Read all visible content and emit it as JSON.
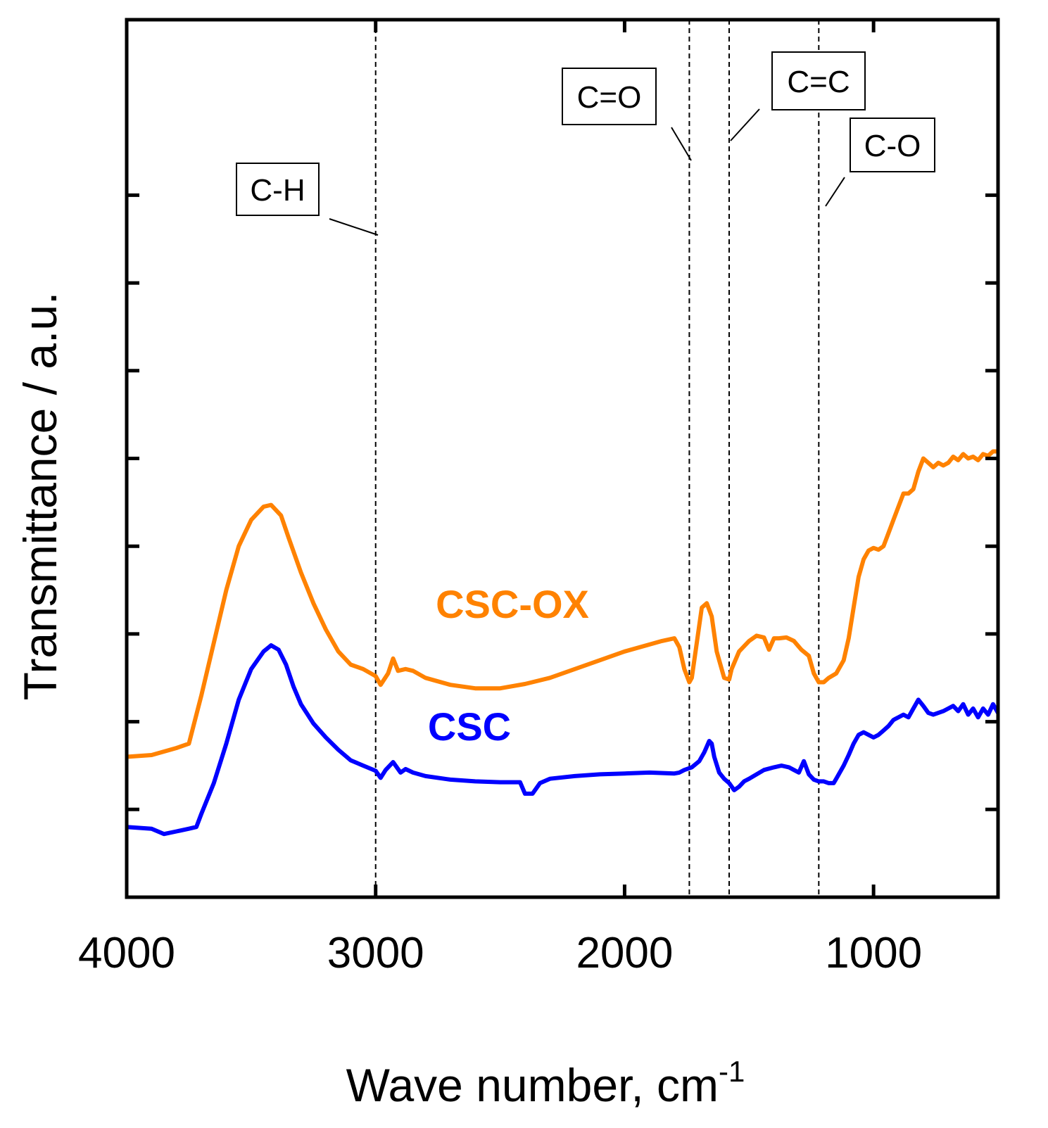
{
  "chart_data": {
    "type": "line",
    "title": "",
    "xlabel": "Wave number, cm",
    "xlabel_superscript": "-1",
    "ylabel": "Transmittance / a.u.",
    "x_reversed": true,
    "xlim": [
      4000,
      500
    ],
    "ylim": [
      0,
      10
    ],
    "x_ticks": [
      4000,
      3000,
      2000,
      1000
    ],
    "x_tick_labels": [
      "4000",
      "3000",
      "2000",
      "1000"
    ],
    "y_ticks": [
      1,
      2,
      3,
      4,
      5,
      6,
      7,
      8
    ],
    "y_tick_labels_visible": false,
    "grid": false,
    "series": [
      {
        "name": "CSC-OX",
        "color": "#ff8200",
        "points": [
          [
            4000,
            1.6
          ],
          [
            3900,
            1.62
          ],
          [
            3800,
            1.7
          ],
          [
            3750,
            1.75
          ],
          [
            3700,
            2.3
          ],
          [
            3650,
            2.9
          ],
          [
            3600,
            3.5
          ],
          [
            3550,
            4.0
          ],
          [
            3500,
            4.3
          ],
          [
            3450,
            4.45
          ],
          [
            3420,
            4.47
          ],
          [
            3380,
            4.35
          ],
          [
            3350,
            4.1
          ],
          [
            3300,
            3.7
          ],
          [
            3250,
            3.35
          ],
          [
            3200,
            3.05
          ],
          [
            3150,
            2.8
          ],
          [
            3100,
            2.65
          ],
          [
            3050,
            2.6
          ],
          [
            3000,
            2.52
          ],
          [
            2980,
            2.42
          ],
          [
            2950,
            2.55
          ],
          [
            2930,
            2.72
          ],
          [
            2910,
            2.58
          ],
          [
            2880,
            2.6
          ],
          [
            2850,
            2.58
          ],
          [
            2800,
            2.5
          ],
          [
            2700,
            2.42
          ],
          [
            2600,
            2.38
          ],
          [
            2500,
            2.38
          ],
          [
            2400,
            2.43
          ],
          [
            2300,
            2.5
          ],
          [
            2200,
            2.6
          ],
          [
            2100,
            2.7
          ],
          [
            2000,
            2.8
          ],
          [
            1900,
            2.88
          ],
          [
            1850,
            2.92
          ],
          [
            1800,
            2.95
          ],
          [
            1780,
            2.85
          ],
          [
            1760,
            2.6
          ],
          [
            1740,
            2.45
          ],
          [
            1730,
            2.5
          ],
          [
            1710,
            2.9
          ],
          [
            1690,
            3.3
          ],
          [
            1670,
            3.35
          ],
          [
            1650,
            3.2
          ],
          [
            1630,
            2.8
          ],
          [
            1600,
            2.5
          ],
          [
            1580,
            2.48
          ],
          [
            1570,
            2.6
          ],
          [
            1540,
            2.8
          ],
          [
            1500,
            2.92
          ],
          [
            1470,
            2.98
          ],
          [
            1440,
            2.96
          ],
          [
            1420,
            2.82
          ],
          [
            1400,
            2.95
          ],
          [
            1380,
            2.95
          ],
          [
            1350,
            2.96
          ],
          [
            1320,
            2.92
          ],
          [
            1290,
            2.82
          ],
          [
            1260,
            2.75
          ],
          [
            1240,
            2.55
          ],
          [
            1220,
            2.45
          ],
          [
            1200,
            2.45
          ],
          [
            1180,
            2.5
          ],
          [
            1150,
            2.55
          ],
          [
            1120,
            2.7
          ],
          [
            1100,
            2.95
          ],
          [
            1080,
            3.3
          ],
          [
            1060,
            3.65
          ],
          [
            1040,
            3.85
          ],
          [
            1020,
            3.95
          ],
          [
            1000,
            3.98
          ],
          [
            980,
            3.96
          ],
          [
            960,
            4.0
          ],
          [
            940,
            4.15
          ],
          [
            920,
            4.3
          ],
          [
            900,
            4.45
          ],
          [
            880,
            4.6
          ],
          [
            860,
            4.6
          ],
          [
            840,
            4.65
          ],
          [
            820,
            4.85
          ],
          [
            800,
            5.0
          ],
          [
            780,
            4.95
          ],
          [
            760,
            4.9
          ],
          [
            740,
            4.95
          ],
          [
            720,
            4.92
          ],
          [
            700,
            4.95
          ],
          [
            680,
            5.02
          ],
          [
            660,
            4.98
          ],
          [
            640,
            5.05
          ],
          [
            620,
            5.0
          ],
          [
            600,
            5.02
          ],
          [
            580,
            4.98
          ],
          [
            560,
            5.05
          ],
          [
            540,
            5.03
          ],
          [
            520,
            5.08
          ],
          [
            500,
            5.08
          ]
        ]
      },
      {
        "name": "CSC",
        "color": "#0000ff",
        "points": [
          [
            4000,
            0.8
          ],
          [
            3900,
            0.78
          ],
          [
            3850,
            0.72
          ],
          [
            3800,
            0.75
          ],
          [
            3750,
            0.78
          ],
          [
            3720,
            0.8
          ],
          [
            3700,
            0.95
          ],
          [
            3650,
            1.3
          ],
          [
            3600,
            1.75
          ],
          [
            3550,
            2.25
          ],
          [
            3500,
            2.6
          ],
          [
            3450,
            2.8
          ],
          [
            3420,
            2.87
          ],
          [
            3390,
            2.82
          ],
          [
            3360,
            2.65
          ],
          [
            3330,
            2.4
          ],
          [
            3300,
            2.2
          ],
          [
            3250,
            1.98
          ],
          [
            3200,
            1.82
          ],
          [
            3150,
            1.68
          ],
          [
            3100,
            1.56
          ],
          [
            3050,
            1.5
          ],
          [
            3000,
            1.44
          ],
          [
            2980,
            1.36
          ],
          [
            2960,
            1.45
          ],
          [
            2930,
            1.54
          ],
          [
            2900,
            1.42
          ],
          [
            2880,
            1.46
          ],
          [
            2850,
            1.42
          ],
          [
            2800,
            1.38
          ],
          [
            2700,
            1.34
          ],
          [
            2600,
            1.32
          ],
          [
            2500,
            1.31
          ],
          [
            2420,
            1.31
          ],
          [
            2400,
            1.18
          ],
          [
            2370,
            1.18
          ],
          [
            2340,
            1.3
          ],
          [
            2300,
            1.35
          ],
          [
            2200,
            1.38
          ],
          [
            2100,
            1.4
          ],
          [
            2000,
            1.41
          ],
          [
            1900,
            1.42
          ],
          [
            1800,
            1.41
          ],
          [
            1780,
            1.42
          ],
          [
            1760,
            1.45
          ],
          [
            1730,
            1.48
          ],
          [
            1700,
            1.55
          ],
          [
            1680,
            1.65
          ],
          [
            1660,
            1.78
          ],
          [
            1650,
            1.75
          ],
          [
            1640,
            1.6
          ],
          [
            1620,
            1.42
          ],
          [
            1600,
            1.35
          ],
          [
            1580,
            1.3
          ],
          [
            1560,
            1.22
          ],
          [
            1540,
            1.26
          ],
          [
            1520,
            1.32
          ],
          [
            1500,
            1.35
          ],
          [
            1470,
            1.4
          ],
          [
            1440,
            1.45
          ],
          [
            1400,
            1.48
          ],
          [
            1370,
            1.5
          ],
          [
            1340,
            1.48
          ],
          [
            1320,
            1.45
          ],
          [
            1300,
            1.42
          ],
          [
            1280,
            1.55
          ],
          [
            1260,
            1.4
          ],
          [
            1240,
            1.34
          ],
          [
            1220,
            1.32
          ],
          [
            1200,
            1.32
          ],
          [
            1180,
            1.3
          ],
          [
            1160,
            1.3
          ],
          [
            1150,
            1.35
          ],
          [
            1120,
            1.5
          ],
          [
            1100,
            1.62
          ],
          [
            1080,
            1.75
          ],
          [
            1060,
            1.85
          ],
          [
            1040,
            1.88
          ],
          [
            1020,
            1.85
          ],
          [
            1000,
            1.82
          ],
          [
            980,
            1.85
          ],
          [
            960,
            1.9
          ],
          [
            940,
            1.95
          ],
          [
            920,
            2.02
          ],
          [
            900,
            2.05
          ],
          [
            880,
            2.08
          ],
          [
            860,
            2.05
          ],
          [
            840,
            2.15
          ],
          [
            820,
            2.25
          ],
          [
            800,
            2.18
          ],
          [
            780,
            2.1
          ],
          [
            760,
            2.08
          ],
          [
            740,
            2.1
          ],
          [
            720,
            2.12
          ],
          [
            700,
            2.15
          ],
          [
            680,
            2.18
          ],
          [
            660,
            2.12
          ],
          [
            640,
            2.2
          ],
          [
            620,
            2.08
          ],
          [
            600,
            2.15
          ],
          [
            580,
            2.05
          ],
          [
            560,
            2.15
          ],
          [
            540,
            2.08
          ],
          [
            520,
            2.2
          ],
          [
            500,
            2.1
          ]
        ]
      }
    ],
    "reference_lines": [
      {
        "x": 3000,
        "label": "C-H"
      },
      {
        "x": 1740,
        "label": "C=O"
      },
      {
        "x": 1580,
        "label": "C=C"
      },
      {
        "x": 1220,
        "label": "C-O"
      }
    ],
    "series_labels": [
      {
        "text": "CSC-OX",
        "color": "#ff8200"
      },
      {
        "text": "CSC",
        "color": "#0000ff"
      }
    ]
  }
}
